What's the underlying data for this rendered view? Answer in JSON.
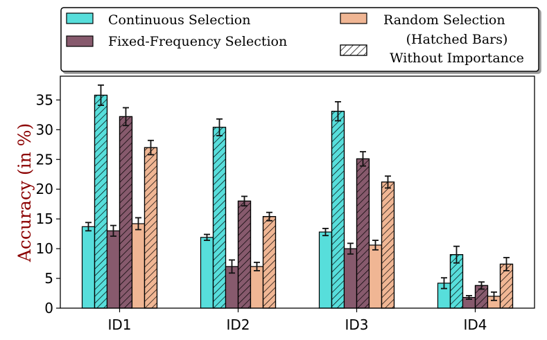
{
  "chart_data": {
    "type": "bar",
    "title": "",
    "xlabel": "",
    "ylabel": "Accuracy (in %)",
    "ylim": [
      0,
      39
    ],
    "yticks": [
      0,
      5,
      10,
      15,
      20,
      25,
      30,
      35
    ],
    "categories": [
      "ID1",
      "ID2",
      "ID3",
      "ID4"
    ],
    "series": [
      {
        "name": "Continuous Selection",
        "color": "#57dedb",
        "hatched": false,
        "values": [
          13.7,
          11.9,
          12.8,
          4.2
        ],
        "errors": [
          0.7,
          0.5,
          0.6,
          0.9
        ]
      },
      {
        "name": "Continuous Selection (Without Importance)",
        "color": "#57dedb",
        "hatched": true,
        "values": [
          35.8,
          30.4,
          33.1,
          9.0
        ],
        "errors": [
          1.7,
          1.4,
          1.6,
          1.4
        ]
      },
      {
        "name": "Fixed-Frequency Selection",
        "color": "#875a6d",
        "hatched": false,
        "values": [
          13.0,
          7.0,
          10.0,
          1.8
        ],
        "errors": [
          0.9,
          1.1,
          0.9,
          0.3
        ]
      },
      {
        "name": "Fixed-Frequency Selection (Without Importance)",
        "color": "#875a6d",
        "hatched": true,
        "values": [
          32.2,
          18.0,
          25.1,
          3.8
        ],
        "errors": [
          1.5,
          0.8,
          1.2,
          0.6
        ]
      },
      {
        "name": "Random Selection",
        "color": "#f0b694",
        "hatched": false,
        "values": [
          14.2,
          7.0,
          10.6,
          2.0
        ],
        "errors": [
          1.0,
          0.7,
          0.8,
          0.7
        ]
      },
      {
        "name": "Random Selection (Without Importance)",
        "color": "#f0b694",
        "hatched": true,
        "values": [
          27.0,
          15.4,
          21.2,
          7.4
        ],
        "errors": [
          1.2,
          0.7,
          1.0,
          1.1
        ]
      }
    ],
    "legend": {
      "position": "top",
      "entries": [
        {
          "label": "Continuous Selection",
          "color": "#57dedb",
          "hatched": false
        },
        {
          "label": "Fixed-Frequency Selection",
          "color": "#875a6d",
          "hatched": false
        },
        {
          "label": "Random Selection",
          "color": "#f0b694",
          "hatched": false
        },
        {
          "label": "(Hatched Bars)",
          "label2": "Without Importance",
          "color": "#ffffff",
          "hatched": true
        }
      ]
    }
  }
}
